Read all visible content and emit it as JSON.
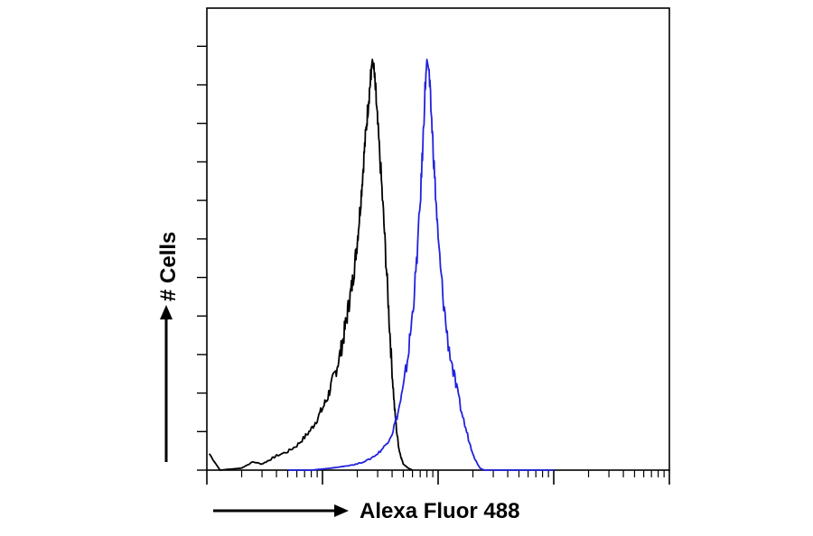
{
  "chart_data": {
    "type": "line",
    "title": "",
    "xlabel": "Alexa Fluor 488",
    "ylabel": "# Cells",
    "x_scale": "log",
    "grid": false,
    "legend": "none",
    "series": [
      {
        "color": "#000000",
        "peak_x": 27,
        "points": [
          [
            1.05,
            8
          ],
          [
            1.3,
            0
          ],
          [
            2,
            1
          ],
          [
            2.5,
            4
          ],
          [
            3,
            3
          ],
          [
            3.5,
            5
          ],
          [
            4,
            7
          ],
          [
            5,
            9
          ],
          [
            6,
            12
          ],
          [
            7,
            16
          ],
          [
            8,
            20
          ],
          [
            9,
            25
          ],
          [
            10,
            30
          ],
          [
            11,
            35
          ],
          [
            12,
            42
          ],
          [
            13,
            48
          ],
          [
            14,
            55
          ],
          [
            15,
            63
          ],
          [
            16,
            72
          ],
          [
            17,
            82
          ],
          [
            18,
            90
          ],
          [
            19,
            100
          ],
          [
            20,
            112
          ],
          [
            21,
            125
          ],
          [
            22,
            140
          ],
          [
            23,
            155
          ],
          [
            24,
            168
          ],
          [
            25,
            180
          ],
          [
            26,
            190
          ],
          [
            26.5,
            196
          ],
          [
            27,
            200
          ],
          [
            28,
            193
          ],
          [
            29,
            182
          ],
          [
            30,
            168
          ],
          [
            32,
            145
          ],
          [
            34,
            120
          ],
          [
            36,
            95
          ],
          [
            38,
            70
          ],
          [
            40,
            48
          ],
          [
            42,
            30
          ],
          [
            44,
            18
          ],
          [
            46,
            10
          ],
          [
            48,
            6
          ],
          [
            50,
            3
          ],
          [
            55,
            1
          ],
          [
            60,
            0
          ]
        ]
      },
      {
        "color": "#2222dd",
        "peak_x": 80,
        "points": [
          [
            5,
            0
          ],
          [
            8,
            0
          ],
          [
            12,
            1
          ],
          [
            16,
            2
          ],
          [
            20,
            3
          ],
          [
            25,
            5
          ],
          [
            30,
            8
          ],
          [
            35,
            12
          ],
          [
            40,
            18
          ],
          [
            45,
            28
          ],
          [
            50,
            40
          ],
          [
            55,
            56
          ],
          [
            60,
            76
          ],
          [
            65,
            100
          ],
          [
            70,
            130
          ],
          [
            74,
            160
          ],
          [
            77,
            185
          ],
          [
            80,
            200
          ],
          [
            83,
            195
          ],
          [
            86,
            180
          ],
          [
            90,
            160
          ],
          [
            95,
            135
          ],
          [
            100,
            112
          ],
          [
            110,
            85
          ],
          [
            120,
            65
          ],
          [
            135,
            48
          ],
          [
            150,
            35
          ],
          [
            170,
            22
          ],
          [
            190,
            12
          ],
          [
            210,
            5
          ],
          [
            230,
            1
          ],
          [
            250,
            0
          ],
          [
            1000,
            0
          ]
        ]
      }
    ],
    "xlim": [
      1,
      10000
    ],
    "ylim": [
      0,
      225
    ],
    "colors": {
      "axis": "#000000",
      "background": "#ffffff"
    }
  }
}
